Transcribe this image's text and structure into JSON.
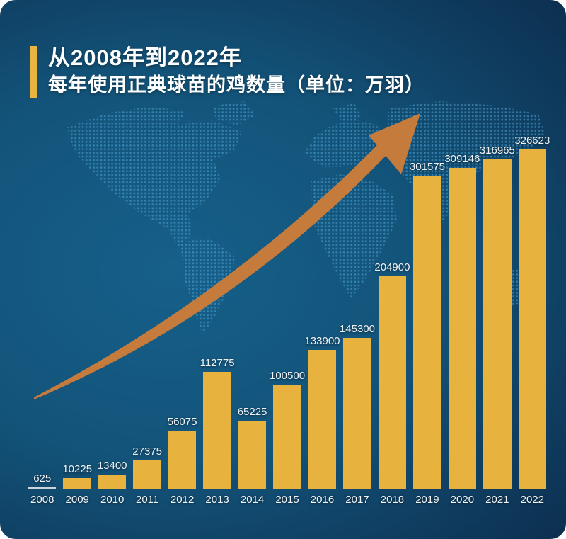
{
  "colors": {
    "canvas_bg_center": "#16608a",
    "canvas_bg_mid": "#135379",
    "canvas_bg_edge": "#0b2440",
    "bar": "#e7b23d",
    "tiny_bar": "#ccd4da",
    "accent_bar": "#e9b440",
    "arrow": "#c57b3c",
    "map_dot": "#4da3d4",
    "title_text": "#ffffff",
    "value_text": "#eef3f7",
    "year_text": "#f2f5f8"
  },
  "title": {
    "line1": "从2008年到2022年",
    "line2": "每年使用正典球苗的鸡数量（单位：万羽）"
  },
  "chart_data": {
    "type": "bar",
    "title": "从2008年到2022年每年使用正典球苗的鸡数量",
    "unit": "万羽",
    "categories": [
      "2008",
      "2009",
      "2010",
      "2011",
      "2012",
      "2013",
      "2014",
      "2015",
      "2016",
      "2017",
      "2018",
      "2019",
      "2020",
      "2021",
      "2022"
    ],
    "values": [
      625,
      10225,
      13400,
      27375,
      56075,
      112775,
      65225,
      100500,
      133900,
      145300,
      204900,
      301575,
      309146,
      316965,
      326623
    ],
    "value_labels_shown": true,
    "ylim": [
      0,
      330000
    ],
    "xlabel": "",
    "ylabel": "",
    "grid": "off",
    "legend": "none",
    "annotations": [
      "growth-arrow"
    ]
  }
}
